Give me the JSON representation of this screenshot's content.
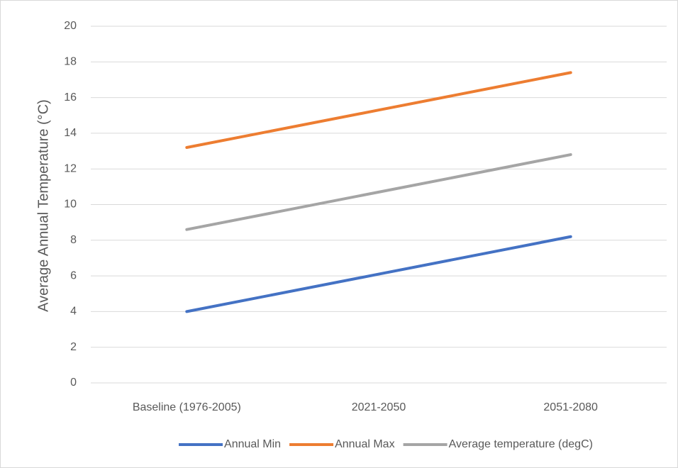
{
  "chart_data": {
    "type": "line",
    "y_label": "Average Annual Temperature (°C)",
    "categories": [
      "Baseline (1976-2005)",
      "2021-2050",
      "2051-2080"
    ],
    "series": [
      {
        "name": "Annual Min",
        "color": "#4472c4",
        "values": [
          4.0,
          6.1,
          8.2
        ]
      },
      {
        "name": "Annual Max",
        "color": "#ed7d31",
        "values": [
          13.2,
          15.3,
          17.4
        ]
      },
      {
        "name": "Average temperature (degC)",
        "color": "#a5a5a5",
        "values": [
          8.6,
          10.7,
          12.8
        ]
      }
    ],
    "ylim": [
      0,
      20
    ],
    "yticks": [
      0,
      2,
      4,
      6,
      8,
      10,
      12,
      14,
      16,
      18,
      20
    ],
    "grid": true,
    "legend": "bottom"
  }
}
